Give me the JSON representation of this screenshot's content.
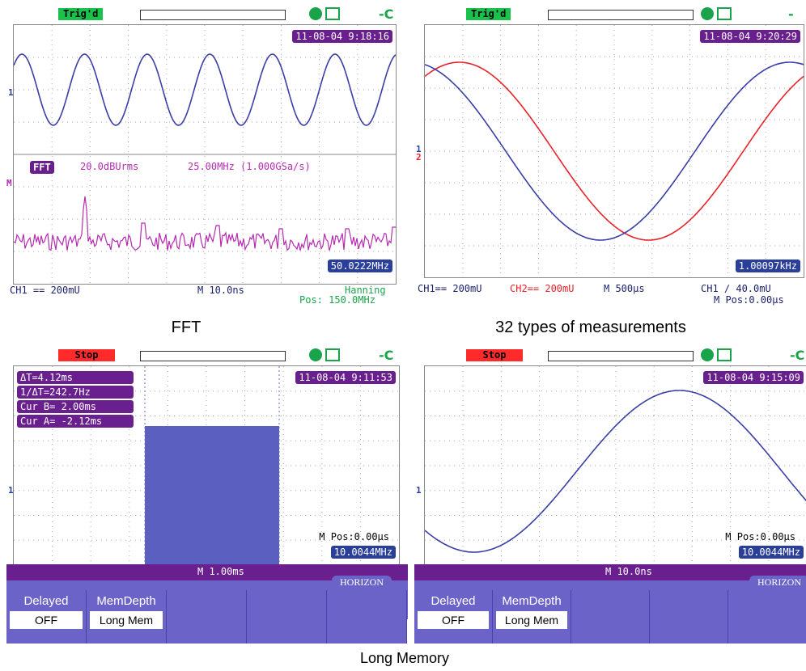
{
  "panel_fft": {
    "trigger": "Trig'd",
    "timestamp": "11-08-04 9:18:16",
    "fft_label": "FFT",
    "fft_scale": "20.0dBUrms",
    "fft_span": "25.00MHz (1.000GSa/s)",
    "freq": "50.0222MHz",
    "ch1": "CH1 == 200mU",
    "timebase": "M 10.0ns",
    "window": "Hanning",
    "pos": "Pos: 150.0MHz",
    "ch_marker": "1",
    "math_marker": "M"
  },
  "panel_meas": {
    "trigger": "Trig'd",
    "timestamp": "11-08-04 9:20:29",
    "freq": "1.00097kHz",
    "ch1": "CH1== 200mU",
    "ch2": "CH2== 200mU",
    "timebase": "M 500µs",
    "trig_level": "CH1 ∕ 40.0mU",
    "mpos": "M Pos:0.00µs",
    "ch_marker": "1",
    "ch2_marker": "2",
    "measurements": [
      "",
      "",
      "",
      "",
      "",
      "",
      "",
      "",
      "",
      "",
      "",
      "",
      "",
      "",
      "",
      "",
      "",
      "",
      "",
      "",
      "",
      "",
      "",
      "",
      "",
      "",
      "",
      "",
      "",
      "",
      "",
      "",
      ""
    ]
  },
  "panel_cursor": {
    "trigger": "Stop",
    "timestamp": "11-08-04 9:11:53",
    "delta_t": "ΔT=4.12ms",
    "inv_delta_t": "1/ΔT=242.7Hz",
    "cur_b": "Cur B= 2.00ms",
    "cur_a": "Cur A= -2.12ms",
    "mpos": "M Pos:0.00µs",
    "freq": "10.0044MHz",
    "timebase": "M 1.00ms",
    "ch_marker": "1"
  },
  "panel_sine": {
    "trigger": "Stop",
    "timestamp": "11-08-04 9:15:09",
    "mpos": "M Pos:0.00µs",
    "freq": "10.0044MHz",
    "timebase": "M 10.0ns",
    "ch_marker": "1"
  },
  "menu_left": {
    "horizon": "HORIZON",
    "buttons": [
      {
        "label": "Delayed",
        "value": "OFF"
      },
      {
        "label": "MemDepth",
        "value": "Long Mem"
      },
      {
        "label": "",
        "value": ""
      },
      {
        "label": "",
        "value": ""
      },
      {
        "label": "",
        "value": ""
      }
    ]
  },
  "menu_right": {
    "horizon": "HORIZON",
    "buttons": [
      {
        "label": "Delayed",
        "value": "OFF"
      },
      {
        "label": "MemDepth",
        "value": "Long Mem"
      },
      {
        "label": "",
        "value": ""
      },
      {
        "label": "",
        "value": ""
      },
      {
        "label": "",
        "value": ""
      }
    ]
  },
  "captions": {
    "fft": "FFT",
    "meas": "32 types of measurements",
    "long_memory": "Long Memory"
  },
  "colors": {
    "ch1": "#3a3fa8",
    "ch2": "#e8232a",
    "fft": "#b52bb0",
    "label_purple": "#6a1f8f",
    "label_blue": "#2a3f9a",
    "menu": "#6b63c8"
  }
}
